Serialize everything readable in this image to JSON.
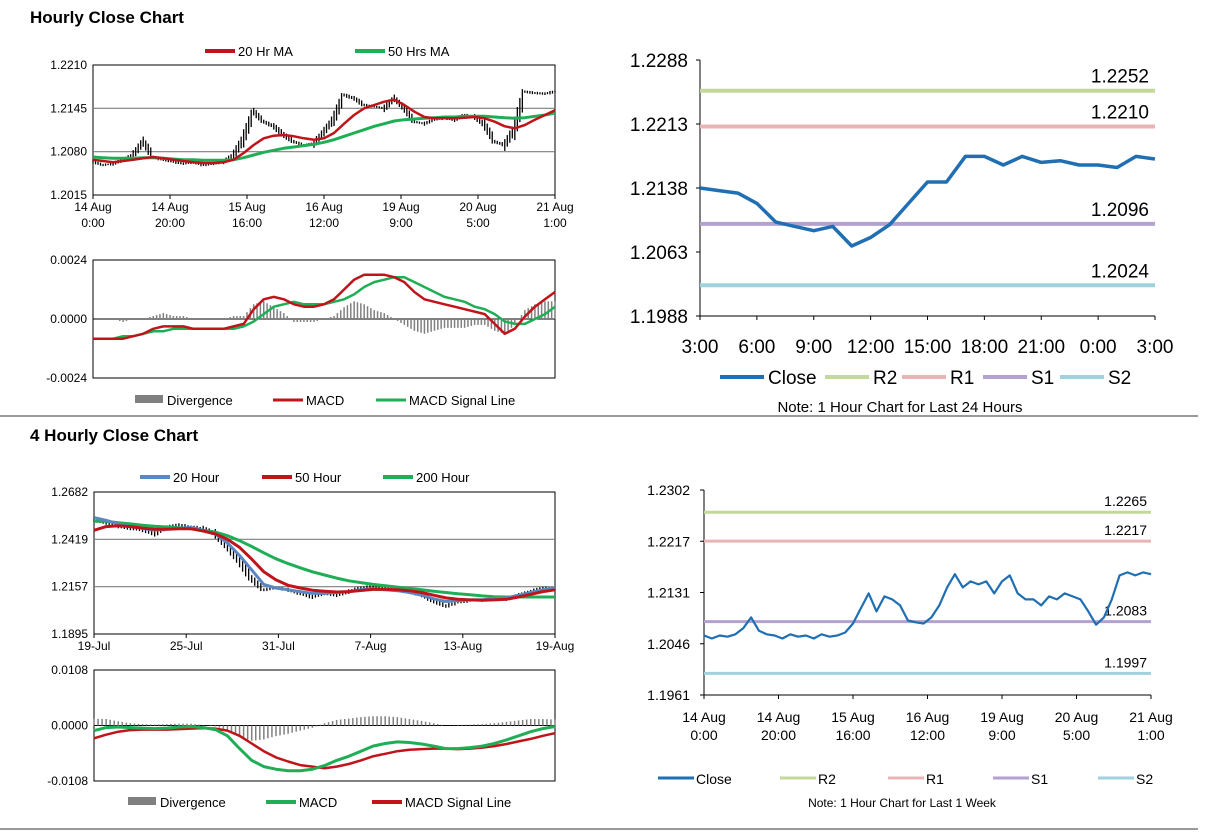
{
  "sections": [
    {
      "title": "Hourly Close Chart"
    },
    {
      "title": "4 Hourly Close Chart"
    }
  ],
  "colors": {
    "close": "#1f6fb2",
    "ma20_red": "#c0141b",
    "ma50_green": "#1fae55",
    "ma20_blue": "#5b88c2",
    "r2": "#c3d99b",
    "r1": "#e8b4b4",
    "s1": "#b3a2cf",
    "s2": "#9fd2dd",
    "divergence": "#808080",
    "grid": "#7f7f7f"
  },
  "chart_data": [
    {
      "id": "hourly-price",
      "type": "line",
      "legend": [
        "20 Hr MA",
        "50 Hrs MA"
      ],
      "yticks": [
        "1.2210",
        "1.2145",
        "1.2080",
        "1.2015"
      ],
      "ylim": [
        1.2015,
        1.221
      ],
      "xticks": [
        [
          "14 Aug",
          "0:00"
        ],
        [
          "14 Aug",
          "20:00"
        ],
        [
          "15 Aug",
          "16:00"
        ],
        [
          "16 Aug",
          "12:00"
        ],
        [
          "19 Aug",
          "9:00"
        ],
        [
          "20 Aug",
          "5:00"
        ],
        [
          "21 Aug",
          "1:00"
        ]
      ],
      "price": [
        1.2065,
        1.206,
        1.2062,
        1.2068,
        1.2075,
        1.2095,
        1.2072,
        1.2068,
        1.2065,
        1.2062,
        1.2064,
        1.206,
        1.2062,
        1.2065,
        1.2075,
        1.21,
        1.214,
        1.2125,
        1.2118,
        1.2105,
        1.2095,
        1.209,
        1.2092,
        1.211,
        1.213,
        1.2165,
        1.216,
        1.215,
        1.2148,
        1.2145,
        1.216,
        1.2145,
        1.2125,
        1.2122,
        1.2128,
        1.213,
        1.2128,
        1.2135,
        1.2132,
        1.212,
        1.2095,
        1.209,
        1.2115,
        1.217,
        1.2168,
        1.2167,
        1.217
      ],
      "series": [
        {
          "name": "20 Hr MA",
          "values": [
            1.2068,
            1.2066,
            1.2064,
            1.2066,
            1.2068,
            1.207,
            1.2072,
            1.207,
            1.2068,
            1.2066,
            1.2064,
            1.2063,
            1.2063,
            1.2064,
            1.2068,
            1.2078,
            1.209,
            1.21,
            1.2104,
            1.2105,
            1.2103,
            1.21,
            1.2098,
            1.21,
            1.2108,
            1.2122,
            1.2135,
            1.2145,
            1.215,
            1.2155,
            1.2158,
            1.215,
            1.214,
            1.2132,
            1.213,
            1.213,
            1.213,
            1.2131,
            1.2132,
            1.213,
            1.2125,
            1.2118,
            1.2115,
            1.212,
            1.2128,
            1.2135,
            1.2142
          ]
        },
        {
          "name": "50 Hrs MA",
          "values": [
            1.2072,
            1.2071,
            1.207,
            1.207,
            1.207,
            1.2071,
            1.2071,
            1.207,
            1.2069,
            1.2068,
            1.2068,
            1.2067,
            1.2067,
            1.2067,
            1.2068,
            1.2071,
            1.2075,
            1.2079,
            1.2082,
            1.2085,
            1.2087,
            1.2089,
            1.2091,
            1.2094,
            1.2098,
            1.2103,
            1.2108,
            1.2113,
            1.2118,
            1.2122,
            1.2126,
            1.2128,
            1.2129,
            1.213,
            1.2131,
            1.2132,
            1.2132,
            1.2133,
            1.2133,
            1.2133,
            1.2132,
            1.2131,
            1.213,
            1.2131,
            1.2133,
            1.2135,
            1.2138
          ]
        }
      ]
    },
    {
      "id": "hourly-macd",
      "type": "line",
      "legend": [
        "Divergence",
        "MACD",
        "MACD Signal Line"
      ],
      "yticks": [
        "0.0024",
        "0.0000",
        "-0.0024"
      ],
      "ylim": [
        -0.0024,
        0.0024
      ],
      "series": [
        {
          "name": "MACD",
          "values": [
            -0.0008,
            -0.0008,
            -0.0008,
            -0.0008,
            -0.0007,
            -0.0006,
            -0.0004,
            -0.0003,
            -0.0003,
            -0.0003,
            -0.0004,
            -0.0004,
            -0.0004,
            -0.0004,
            -0.0003,
            -0.0002,
            0.0004,
            0.0008,
            0.0009,
            0.0008,
            0.0006,
            0.0005,
            0.0005,
            0.0006,
            0.0008,
            0.0012,
            0.0016,
            0.0018,
            0.0018,
            0.0018,
            0.0017,
            0.0015,
            0.0011,
            0.0008,
            0.0007,
            0.0006,
            0.0005,
            0.0004,
            0.0003,
            0.0002,
            -0.0002,
            -0.0006,
            -0.0004,
            0.0001,
            0.0005,
            0.0008,
            0.0011
          ]
        },
        {
          "name": "MACD Signal Line",
          "values": [
            -0.0008,
            -0.0008,
            -0.0008,
            -0.0007,
            -0.0007,
            -0.0006,
            -0.0005,
            -0.0005,
            -0.0004,
            -0.0004,
            -0.0004,
            -0.0004,
            -0.0004,
            -0.0004,
            -0.0004,
            -0.0003,
            -0.0001,
            0.0002,
            0.0005,
            0.0006,
            0.0007,
            0.0006,
            0.0006,
            0.0006,
            0.0007,
            0.0008,
            0.001,
            0.0013,
            0.0015,
            0.0016,
            0.0017,
            0.0017,
            0.0015,
            0.0013,
            0.0011,
            0.0009,
            0.0008,
            0.0007,
            0.0005,
            0.0004,
            0.0002,
            -0.0001,
            -0.0002,
            -0.0002,
            0.0,
            0.0002,
            0.0005
          ]
        }
      ]
    },
    {
      "id": "hourly-24h",
      "type": "line",
      "title": "Note: 1 Hour Chart for Last 24 Hours",
      "legend": [
        "Close",
        "R2",
        "R1",
        "S1",
        "S2"
      ],
      "yticks": [
        "1.2288",
        "1.2213",
        "1.2138",
        "1.2063",
        "1.1988"
      ],
      "ylim": [
        1.1988,
        1.2288
      ],
      "xticks": [
        "3:00",
        "6:00",
        "9:00",
        "12:00",
        "15:00",
        "18:00",
        "21:00",
        "0:00",
        "3:00"
      ],
      "close": [
        1.2138,
        1.2135,
        1.2132,
        1.212,
        1.2098,
        1.2093,
        1.2088,
        1.2093,
        1.207,
        1.208,
        1.2095,
        1.212,
        1.2145,
        1.2145,
        1.2175,
        1.2175,
        1.2165,
        1.2175,
        1.2168,
        1.217,
        1.2165,
        1.2165,
        1.2162,
        1.2175,
        1.2172
      ],
      "levels": [
        {
          "name": "R2",
          "value": 1.2252,
          "label": "1.2252"
        },
        {
          "name": "R1",
          "value": 1.221,
          "label": "1.2210"
        },
        {
          "name": "S1",
          "value": 1.2096,
          "label": "1.2096"
        },
        {
          "name": "S2",
          "value": 1.2024,
          "label": "1.2024"
        }
      ]
    },
    {
      "id": "four-hourly-price",
      "type": "line",
      "legend": [
        "20 Hour",
        "50 Hour",
        "200 Hour"
      ],
      "yticks": [
        "1.2682",
        "1.2419",
        "1.2157",
        "1.1895"
      ],
      "ylim": [
        1.1895,
        1.2682
      ],
      "xticks": [
        "19-Jul",
        "25-Jul",
        "31-Jul",
        "7-Aug",
        "13-Aug",
        "19-Aug"
      ],
      "price": [
        1.253,
        1.251,
        1.249,
        1.248,
        1.247,
        1.245,
        1.249,
        1.25,
        1.249,
        1.248,
        1.245,
        1.238,
        1.23,
        1.22,
        1.214,
        1.215,
        1.214,
        1.212,
        1.21,
        1.212,
        1.211,
        1.213,
        1.215,
        1.216,
        1.215,
        1.214,
        1.213,
        1.211,
        1.208,
        1.205,
        1.207,
        1.208,
        1.208,
        1.209,
        1.209,
        1.211,
        1.213,
        1.215,
        1.214
      ],
      "series": [
        {
          "name": "20 Hour",
          "values": [
            1.254,
            1.2525,
            1.2505,
            1.249,
            1.248,
            1.247,
            1.2475,
            1.248,
            1.2485,
            1.247,
            1.245,
            1.24,
            1.233,
            1.225,
            1.217,
            1.215,
            1.214,
            1.213,
            1.212,
            1.212,
            1.2125,
            1.213,
            1.214,
            1.2145,
            1.214,
            1.2135,
            1.2125,
            1.211,
            1.209,
            1.2075,
            1.208,
            1.2085,
            1.2085,
            1.209,
            1.2095,
            1.211,
            1.2125,
            1.214,
            1.215
          ]
        },
        {
          "name": "50 Hour",
          "values": [
            1.247,
            1.249,
            1.2495,
            1.249,
            1.2482,
            1.2476,
            1.2476,
            1.2478,
            1.2478,
            1.2466,
            1.245,
            1.242,
            1.2375,
            1.231,
            1.224,
            1.2195,
            1.2165,
            1.215,
            1.2138,
            1.2132,
            1.2128,
            1.213,
            1.2136,
            1.2142,
            1.2142,
            1.214,
            1.2135,
            1.2125,
            1.211,
            1.2095,
            1.2088,
            1.2084,
            1.2082,
            1.2084,
            1.2088,
            1.21,
            1.2115,
            1.213,
            1.214
          ]
        },
        {
          "name": "200 Hour",
          "values": [
            1.252,
            1.252,
            1.2512,
            1.2505,
            1.2498,
            1.2492,
            1.2488,
            1.2484,
            1.2478,
            1.247,
            1.246,
            1.244,
            1.2412,
            1.238,
            1.2345,
            1.2312,
            1.2285,
            1.2262,
            1.224,
            1.2222,
            1.2205,
            1.219,
            1.218,
            1.217,
            1.2162,
            1.2155,
            1.2148,
            1.214,
            1.2132,
            1.2125,
            1.2118,
            1.2112,
            1.2106,
            1.2102,
            1.21,
            1.21,
            1.21,
            1.21,
            1.21
          ]
        }
      ]
    },
    {
      "id": "four-hourly-macd",
      "type": "line",
      "legend": [
        "Divergence",
        "MACD",
        "MACD Signal Line"
      ],
      "yticks": [
        "0.0108",
        "0.0000",
        "-0.0108"
      ],
      "ylim": [
        -0.0108,
        0.0108
      ],
      "series": [
        {
          "name": "MACD",
          "values": [
            -0.001,
            -0.0004,
            -0.0003,
            -0.0004,
            -0.0005,
            -0.0006,
            -0.0005,
            -0.0003,
            -0.0002,
            -0.0004,
            -0.0008,
            -0.002,
            -0.0045,
            -0.0068,
            -0.008,
            -0.0085,
            -0.0088,
            -0.0088,
            -0.0085,
            -0.0078,
            -0.0068,
            -0.006,
            -0.005,
            -0.004,
            -0.0035,
            -0.0032,
            -0.0033,
            -0.0036,
            -0.004,
            -0.0045,
            -0.0045,
            -0.0043,
            -0.004,
            -0.0035,
            -0.0028,
            -0.002,
            -0.0012,
            -0.0006,
            -0.0002
          ]
        },
        {
          "name": "MACD Signal Line",
          "values": [
            -0.0025,
            -0.0018,
            -0.0012,
            -0.0009,
            -0.0008,
            -0.0008,
            -0.0008,
            -0.0007,
            -0.0006,
            -0.0005,
            -0.0006,
            -0.001,
            -0.002,
            -0.0035,
            -0.005,
            -0.0062,
            -0.007,
            -0.0077,
            -0.008,
            -0.0083,
            -0.008,
            -0.0075,
            -0.0068,
            -0.006,
            -0.0055,
            -0.005,
            -0.0047,
            -0.0046,
            -0.0045,
            -0.0045,
            -0.0046,
            -0.0045,
            -0.0043,
            -0.004,
            -0.0036,
            -0.0031,
            -0.0026,
            -0.002,
            -0.0015
          ]
        }
      ]
    },
    {
      "id": "week-1h",
      "type": "line",
      "title": "Note: 1 Hour Chart for Last 1 Week",
      "legend": [
        "Close",
        "R2",
        "R1",
        "S1",
        "S2"
      ],
      "yticks": [
        "1.2302",
        "1.2217",
        "1.2131",
        "1.2046",
        "1.1961"
      ],
      "ylim": [
        1.1961,
        1.2302
      ],
      "xticks": [
        [
          "14 Aug",
          "0:00"
        ],
        [
          "14 Aug",
          "20:00"
        ],
        [
          "15 Aug",
          "16:00"
        ],
        [
          "16 Aug",
          "12:00"
        ],
        [
          "19 Aug",
          "9:00"
        ],
        [
          "20 Aug",
          "5:00"
        ],
        [
          "21 Aug",
          "1:00"
        ]
      ],
      "close": [
        1.206,
        1.2055,
        1.206,
        1.2058,
        1.2062,
        1.2072,
        1.209,
        1.2068,
        1.2062,
        1.206,
        1.2055,
        1.2062,
        1.2058,
        1.206,
        1.2055,
        1.2062,
        1.2058,
        1.206,
        1.2065,
        1.208,
        1.2105,
        1.213,
        1.21,
        1.2125,
        1.212,
        1.211,
        1.2085,
        1.2082,
        1.208,
        1.209,
        1.211,
        1.214,
        1.2162,
        1.214,
        1.215,
        1.2145,
        1.215,
        1.213,
        1.215,
        1.216,
        1.213,
        1.212,
        1.212,
        1.211,
        1.2125,
        1.212,
        1.213,
        1.2125,
        1.212,
        1.21,
        1.2078,
        1.209,
        1.212,
        1.216,
        1.2165,
        1.216,
        1.2165,
        1.2162
      ],
      "levels": [
        {
          "name": "R2",
          "value": 1.2265,
          "label": "1.2265"
        },
        {
          "name": "R1",
          "value": 1.2217,
          "label": "1.2217"
        },
        {
          "name": "S1",
          "value": 1.2083,
          "label": "1.2083"
        },
        {
          "name": "S2",
          "value": 1.1997,
          "label": "1.1997"
        }
      ]
    }
  ]
}
